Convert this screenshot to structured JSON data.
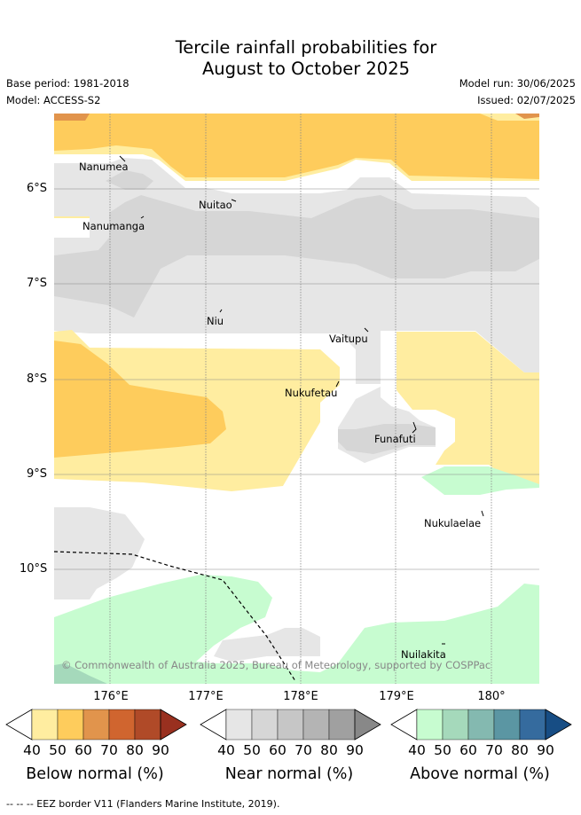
{
  "title_line1": "Tercile rainfall probabilities for",
  "title_line2": "August to October 2025",
  "base_period": "Base period: 1981-2018",
  "model": "Model: ACCESS-S2",
  "model_run": "Model run: 30/06/2025",
  "issued": "Issued: 02/07/2025",
  "map": {
    "lat_labels": [
      "6°S",
      "7°S",
      "8°S",
      "9°S",
      "10°S"
    ],
    "lon_labels": [
      "176°E",
      "177°E",
      "178°E",
      "179°E",
      "180°"
    ],
    "islands": [
      "Nanumea",
      "Nuitao",
      "Nanumanga",
      "Niu",
      "Vaitupu",
      "Nukufetau",
      "Funafuti",
      "Nukulaelae",
      "Nuilakita"
    ],
    "copyright": "© Commonwealth of Australia 2025, Bureau of Meteorology, supported by COSPPac"
  },
  "colorbars": [
    {
      "label": "Below normal (%)",
      "ticks": [
        "40",
        "50",
        "60",
        "70",
        "80",
        "90"
      ],
      "colors": [
        "#ffeda0",
        "#fecc5c",
        "#e1944c",
        "#d0652f",
        "#b04a28",
        "#99301f"
      ]
    },
    {
      "label": "Near normal (%)",
      "ticks": [
        "40",
        "50",
        "60",
        "70",
        "80",
        "90"
      ],
      "colors": [
        "#e6e6e6",
        "#d6d6d6",
        "#c6c6c6",
        "#b4b4b4",
        "#a0a0a0",
        "#888888"
      ]
    },
    {
      "label": "Above normal (%)",
      "ticks": [
        "40",
        "50",
        "60",
        "70",
        "80",
        "90"
      ],
      "colors": [
        "#c7fcd0",
        "#a5d9bb",
        "#84b9b0",
        "#5b96a3",
        "#356b9e",
        "#174d84"
      ]
    }
  ],
  "footer": "--  --  -- EEZ border V11 (Flanders Marine Institute, 2019)."
}
